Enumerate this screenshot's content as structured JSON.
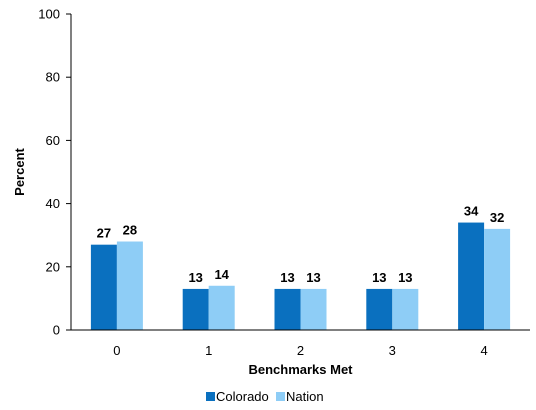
{
  "chart_data": {
    "type": "bar",
    "categories": [
      "0",
      "1",
      "2",
      "3",
      "4"
    ],
    "series": [
      {
        "name": "Colorado",
        "values": [
          27,
          13,
          13,
          13,
          34
        ],
        "color": "#0a70bf"
      },
      {
        "name": "Nation",
        "values": [
          28,
          14,
          13,
          13,
          32
        ],
        "color": "#8ecdf6"
      }
    ],
    "xlabel": "Benchmarks Met",
    "ylabel": "Percent",
    "ylim": [
      0,
      100
    ],
    "yticks": [
      0,
      20,
      40,
      60,
      80,
      100
    ],
    "grid": false,
    "legend": "bottom"
  }
}
